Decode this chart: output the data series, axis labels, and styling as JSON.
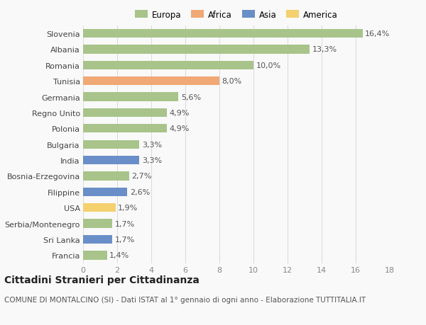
{
  "categories": [
    "Francia",
    "Sri Lanka",
    "Serbia/Montenegro",
    "USA",
    "Filippine",
    "Bosnia-Erzegovina",
    "India",
    "Bulgaria",
    "Polonia",
    "Regno Unito",
    "Germania",
    "Tunisia",
    "Romania",
    "Albania",
    "Slovenia"
  ],
  "values": [
    1.4,
    1.7,
    1.7,
    1.9,
    2.6,
    2.7,
    3.3,
    3.3,
    4.9,
    4.9,
    5.6,
    8.0,
    10.0,
    13.3,
    16.4
  ],
  "labels": [
    "1,4%",
    "1,7%",
    "1,7%",
    "1,9%",
    "2,6%",
    "2,7%",
    "3,3%",
    "3,3%",
    "4,9%",
    "4,9%",
    "5,6%",
    "8,0%",
    "10,0%",
    "13,3%",
    "16,4%"
  ],
  "continents": [
    "Europa",
    "Asia",
    "Europa",
    "America",
    "Asia",
    "Europa",
    "Asia",
    "Europa",
    "Europa",
    "Europa",
    "Europa",
    "Africa",
    "Europa",
    "Europa",
    "Europa"
  ],
  "continent_colors": {
    "Europa": "#a8c48a",
    "Africa": "#f0a875",
    "Asia": "#6a8fc8",
    "America": "#f5d06e"
  },
  "legend_order": [
    "Europa",
    "Africa",
    "Asia",
    "America"
  ],
  "xlim": [
    0,
    18
  ],
  "xticks": [
    0,
    2,
    4,
    6,
    8,
    10,
    12,
    14,
    16,
    18
  ],
  "title": "Cittadini Stranieri per Cittadinanza",
  "subtitle": "COMUNE DI MONTALCINO (SI) - Dati ISTAT al 1° gennaio di ogni anno - Elaborazione TUTTITALIA.IT",
  "background_color": "#f9f9f9",
  "bar_height": 0.55,
  "label_fontsize": 8,
  "tick_fontsize": 8,
  "title_fontsize": 10,
  "subtitle_fontsize": 7.5
}
